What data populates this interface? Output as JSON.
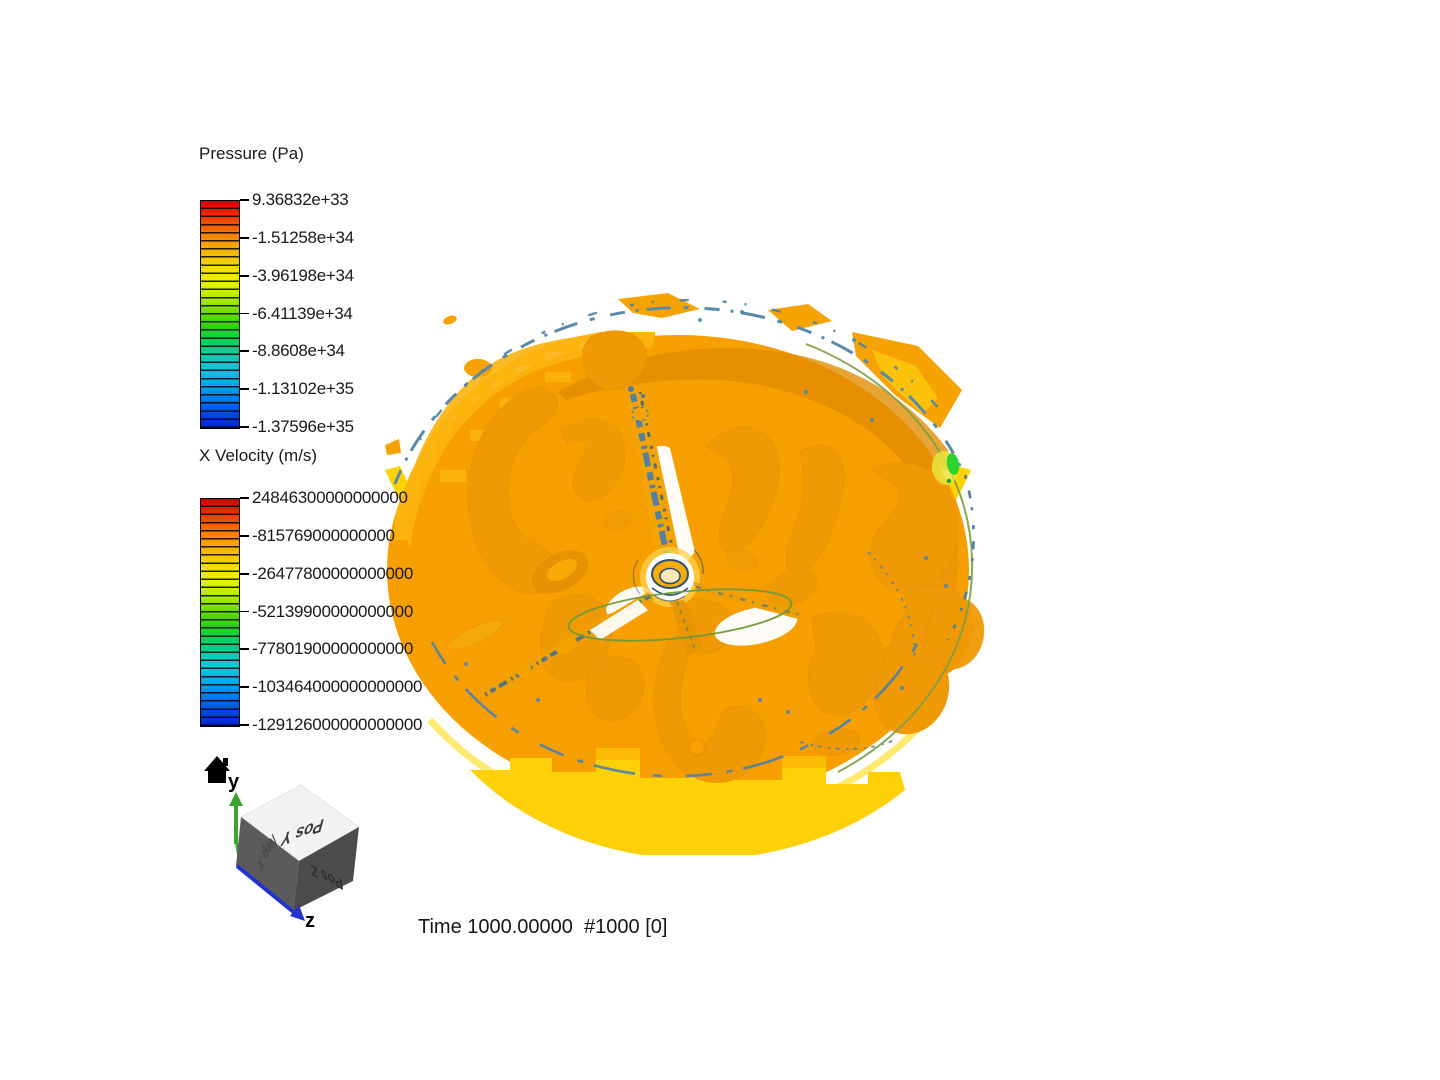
{
  "background": "#ffffff",
  "legends": [
    {
      "title": "Pressure (Pa)",
      "ticks": [
        "9.36832e+33",
        "-1.51258e+34",
        "-3.96198e+34",
        "-6.41139e+34",
        "-8.8608e+34",
        "-1.13102e+35",
        "-1.37596e+35"
      ]
    },
    {
      "title": "X Velocity (m/s)",
      "ticks": [
        "24846300000000000",
        "-815769000000000",
        "-26477800000000000",
        "-52139900000000000",
        "-77801900000000000",
        "-103464000000000000",
        "-129126000000000000"
      ]
    }
  ],
  "colormap": [
    "#d70000",
    "#e71800",
    "#f03c00",
    "#f25d00",
    "#f47e00",
    "#f69c00",
    "#f3b400",
    "#f2ca00",
    "#f2dc00",
    "#f0ea00",
    "#e2f000",
    "#c3ec00",
    "#9fe600",
    "#76df00",
    "#4cd800",
    "#2ad315",
    "#14d13e",
    "#06cf6c",
    "#00ce97",
    "#00cdbd",
    "#00c9da",
    "#00b9e2",
    "#00a3e6",
    "#0089e8",
    "#006ce9",
    "#0050e6",
    "#0038dd",
    "#0024cf"
  ],
  "time_label": "Time 1000.00000  #1000 [0]",
  "orientation": {
    "up_axis_label": "y",
    "forward_axis_label": "z",
    "faces": {
      "top": "Pos Y",
      "right": "Pos Z",
      "left": "Neg X"
    },
    "axis_colors": {
      "y": "#3aa52f",
      "z": "#2433cf"
    }
  },
  "scene_colors": {
    "free_surface_orange": "#f89f00",
    "upper_left_light_orange": "#fcb40e",
    "rim_yellow": "#ffd301",
    "vortex_orange": "#ef9a04",
    "boundary_speckle_blue": "#4f81a8",
    "zone_outline_green": "#7d9d45",
    "velocity_spot_green": "#2fd32f",
    "hub_outline_navy": "#2e4f78"
  }
}
